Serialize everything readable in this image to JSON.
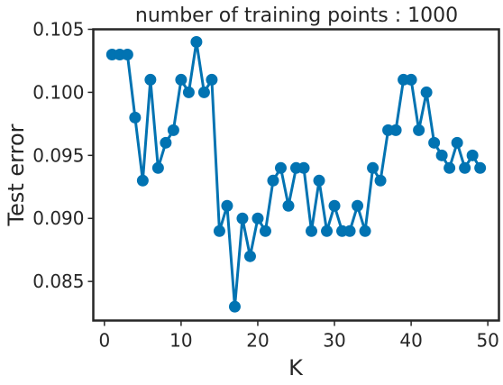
{
  "chart_data": {
    "type": "line",
    "title": "number of training points : 1000",
    "xlabel": "K",
    "ylabel": "Test error",
    "xlim": [
      -1.45,
      51.45
    ],
    "ylim": [
      0.0819,
      0.105
    ],
    "xticks": [
      0,
      10,
      20,
      30,
      40,
      50
    ],
    "xtick_labels": [
      "0",
      "10",
      "20",
      "30",
      "40",
      "50"
    ],
    "yticks": [
      0.085,
      0.09,
      0.095,
      0.1,
      0.105
    ],
    "ytick_labels": [
      "0.085",
      "0.090",
      "0.095",
      "0.100",
      "0.105"
    ],
    "grid": false,
    "markers": true,
    "color": "#0173b2",
    "series": [
      {
        "x": [
          1,
          2,
          3,
          4,
          5,
          6,
          7,
          8,
          9,
          10,
          11,
          12,
          13,
          14,
          15,
          16,
          17,
          18,
          19,
          20,
          21,
          22,
          23,
          24,
          25,
          26,
          27,
          28,
          29,
          30,
          31,
          32,
          33,
          34,
          35,
          36,
          37,
          38,
          39,
          40,
          41,
          42,
          43,
          44,
          45,
          46,
          47,
          48,
          49
        ],
        "values": [
          0.103,
          0.103,
          0.103,
          0.098,
          0.093,
          0.101,
          0.094,
          0.096,
          0.097,
          0.101,
          0.1,
          0.104,
          0.1,
          0.101,
          0.089,
          0.091,
          0.083,
          0.09,
          0.087,
          0.09,
          0.089,
          0.093,
          0.094,
          0.091,
          0.094,
          0.094,
          0.089,
          0.093,
          0.089,
          0.091,
          0.089,
          0.089,
          0.091,
          0.089,
          0.094,
          0.093,
          0.097,
          0.097,
          0.101,
          0.101,
          0.097,
          0.1,
          0.096,
          0.095,
          0.094,
          0.096,
          0.094,
          0.095,
          0.094
        ]
      }
    ]
  }
}
